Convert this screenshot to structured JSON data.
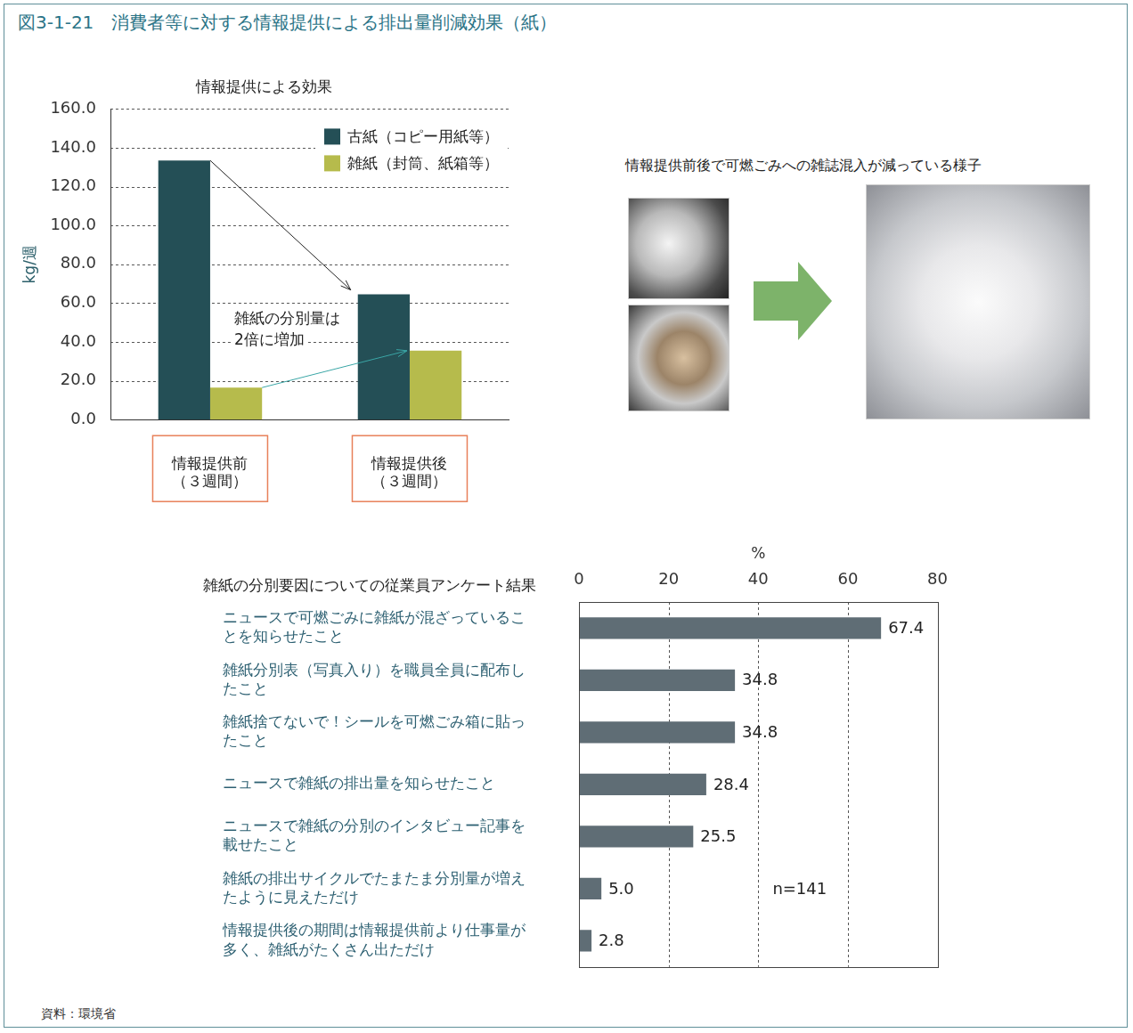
{
  "header": {
    "title": "図3-1-21　消費者等に対する情報提供による排出量削減効果（紙）",
    "source": "資料：環境省"
  },
  "photos": {
    "caption": "情報提供前後で可燃ごみへの雑誌混入が減っている様子"
  },
  "chart_data": [
    {
      "type": "bar",
      "title": "情報提供による効果",
      "ylabel": "kg/週",
      "categories": [
        "情報提供前（３週間）",
        "情報提供後（３週間）"
      ],
      "series": [
        {
          "name": "古紙（コピー用紙等）",
          "color": "#244f56",
          "values": [
            133.5,
            64.5
          ]
        },
        {
          "name": "雑紙（封筒、紙箱等）",
          "color": "#b6bb4c",
          "values": [
            16.5,
            35.5
          ]
        }
      ],
      "ylim": [
        0,
        160
      ],
      "yticks": [
        {
          "value": 0,
          "label": "0.0"
        },
        {
          "value": 20,
          "label": "20.0"
        },
        {
          "value": 40,
          "label": "40.0"
        },
        {
          "value": 60,
          "label": "60.0"
        },
        {
          "value": 80,
          "label": "80.0"
        },
        {
          "value": 100,
          "label": "100.0"
        },
        {
          "value": 120,
          "label": "120.0"
        },
        {
          "value": 140,
          "label": "140.0"
        },
        {
          "value": 160,
          "label": "160.0"
        }
      ],
      "grid": true,
      "legend": "upper right",
      "annotations": [
        {
          "text": [
            "雑紙の分別量は",
            "2倍に増加"
          ]
        }
      ]
    },
    {
      "type": "bar",
      "orientation": "horizontal",
      "title": "雑紙の分別要因についての従業員アンケート結果",
      "xlabel": "%",
      "categories": [
        "ニュースで可燃ごみに雑紙が混ざっていることを知らせたこと",
        "雑紙分別表（写真入り）を職員全員に配布したこと",
        "雑紙捨てないで！シールを可燃ごみ箱に貼ったこと",
        "ニュースで雑紙の排出量を知らせたこと",
        "ニュースで雑紙の分別のインタビュー記事を載せたこと",
        "雑紙の排出サイクルでたまたま分別量が増えたように見えただけ",
        "情報提供後の期間は情報提供前より仕事量が多く、雑紙がたくさん出ただけ"
      ],
      "values": [
        67.4,
        34.8,
        34.8,
        28.4,
        25.5,
        5.0,
        2.8
      ],
      "value_labels": [
        "67.4",
        "34.8",
        "34.8",
        "28.4",
        "25.5",
        "5.0",
        "2.8"
      ],
      "data_labels": true,
      "color": "#5f6d75",
      "xlim": [
        0,
        80
      ],
      "xticks": [
        0,
        20,
        40,
        60,
        80
      ],
      "grid": true,
      "annotations": [
        {
          "text": "n=141"
        }
      ]
    }
  ]
}
